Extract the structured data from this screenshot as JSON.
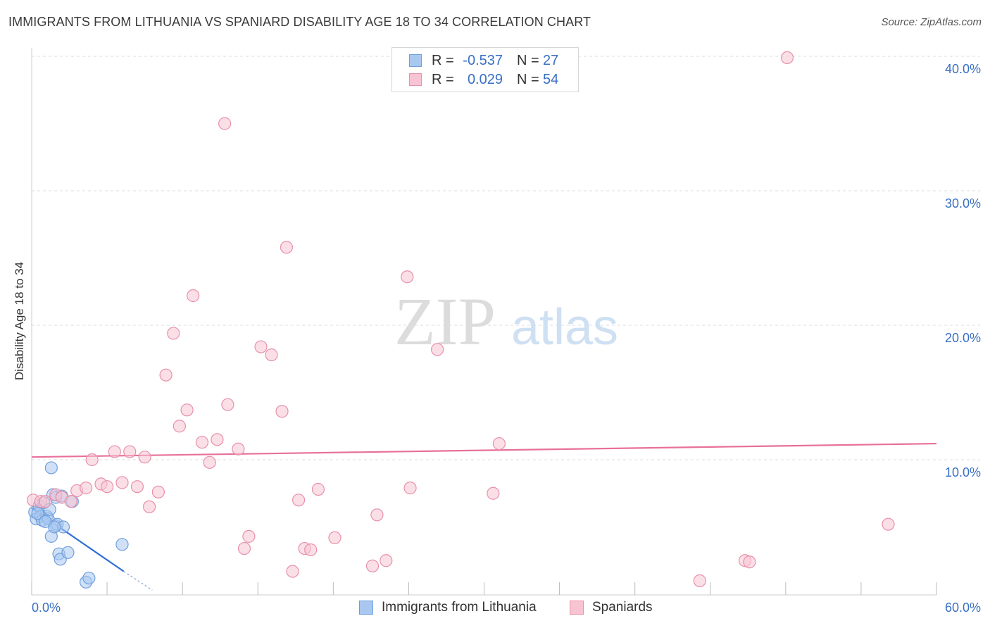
{
  "title": "IMMIGRANTS FROM LITHUANIA VS SPANIARD DISABILITY AGE 18 TO 34 CORRELATION CHART",
  "source": "Source: ZipAtlas.com",
  "watermark": {
    "zip": "ZIP",
    "atlas": "atlas"
  },
  "legend": {
    "rows": [
      {
        "r_label": "R =",
        "r_value": "-0.537",
        "n_label": "N =",
        "n_value": "27",
        "color": "#a9c8f0",
        "border": "#6f9fdc"
      },
      {
        "r_label": "R =",
        "r_value": "0.029",
        "n_label": "N =",
        "n_value": "54",
        "color": "#f8c4d3",
        "border": "#e890aa"
      }
    ]
  },
  "bottom_legend": [
    {
      "label": "Immigrants from Lithuania",
      "color": "#a9c8f0",
      "border": "#6f9fdc"
    },
    {
      "label": "Spaniards",
      "color": "#f8c4d3",
      "border": "#e890aa"
    }
  ],
  "chart_data": {
    "type": "scatter",
    "title": "IMMIGRANTS FROM LITHUANIA VS SPANIARD DISABILITY AGE 18 TO 34 CORRELATION CHART",
    "xlabel": "",
    "ylabel": "Disability Age 18 to 34",
    "xlim": [
      0,
      60
    ],
    "ylim": [
      0,
      41
    ],
    "x_tick_labels": [
      "0.0%",
      "60.0%"
    ],
    "y_ticks": [
      10,
      20,
      30,
      40
    ],
    "y_tick_labels": [
      "10.0%",
      "20.0%",
      "30.0%",
      "40.0%"
    ],
    "series": [
      {
        "name": "Immigrants from Lithuania",
        "color": "#a9c8f0",
        "stroke": "#6f9fdc",
        "points": [
          [
            0.2,
            6.1
          ],
          [
            0.3,
            5.6
          ],
          [
            0.5,
            6.6
          ],
          [
            0.6,
            5.8
          ],
          [
            0.7,
            5.5
          ],
          [
            0.8,
            6.8
          ],
          [
            1.0,
            5.8
          ],
          [
            1.1,
            5.6
          ],
          [
            1.2,
            6.3
          ],
          [
            1.3,
            4.3
          ],
          [
            1.3,
            9.4
          ],
          [
            1.4,
            7.4
          ],
          [
            1.6,
            5.1
          ],
          [
            1.6,
            7.2
          ],
          [
            1.7,
            5.2
          ],
          [
            1.8,
            3.0
          ],
          [
            1.9,
            2.6
          ],
          [
            2.0,
            7.3
          ],
          [
            2.1,
            5.0
          ],
          [
            2.4,
            3.1
          ],
          [
            2.7,
            6.9
          ],
          [
            3.6,
            0.9
          ],
          [
            3.8,
            1.2
          ],
          [
            6.0,
            3.7
          ],
          [
            0.4,
            6.0
          ],
          [
            0.9,
            5.4
          ],
          [
            1.5,
            5.0
          ]
        ],
        "trend": {
          "x": [
            0,
            6.1
          ],
          "y": [
            6.4,
            1.7
          ],
          "dash_x": [
            6.1,
            8.0
          ],
          "dash_y": [
            1.7,
            0.3
          ]
        }
      },
      {
        "name": "Spaniards",
        "color": "#f8c4d3",
        "stroke": "#e890aa",
        "points": [
          [
            0.1,
            7.0
          ],
          [
            0.6,
            6.9
          ],
          [
            0.9,
            6.9
          ],
          [
            1.6,
            7.4
          ],
          [
            2.0,
            7.2
          ],
          [
            2.6,
            6.9
          ],
          [
            3.0,
            7.7
          ],
          [
            3.6,
            7.9
          ],
          [
            4.0,
            10.0
          ],
          [
            4.6,
            8.2
          ],
          [
            5.0,
            8.0
          ],
          [
            5.5,
            10.6
          ],
          [
            6.0,
            8.3
          ],
          [
            6.5,
            10.6
          ],
          [
            7.0,
            8.0
          ],
          [
            7.5,
            10.2
          ],
          [
            7.8,
            6.5
          ],
          [
            8.4,
            7.6
          ],
          [
            8.9,
            16.3
          ],
          [
            9.4,
            19.4
          ],
          [
            9.8,
            12.5
          ],
          [
            10.3,
            13.7
          ],
          [
            10.7,
            22.2
          ],
          [
            11.3,
            11.3
          ],
          [
            11.8,
            9.8
          ],
          [
            12.3,
            11.5
          ],
          [
            12.8,
            35.0
          ],
          [
            13.0,
            14.1
          ],
          [
            13.7,
            10.8
          ],
          [
            14.1,
            3.4
          ],
          [
            14.4,
            4.3
          ],
          [
            15.2,
            18.4
          ],
          [
            15.9,
            17.8
          ],
          [
            16.6,
            13.6
          ],
          [
            16.9,
            25.8
          ],
          [
            17.3,
            1.7
          ],
          [
            17.7,
            7.0
          ],
          [
            18.1,
            3.4
          ],
          [
            18.5,
            3.3
          ],
          [
            19.0,
            7.8
          ],
          [
            20.1,
            4.2
          ],
          [
            22.6,
            2.1
          ],
          [
            22.9,
            5.9
          ],
          [
            23.5,
            2.5
          ],
          [
            24.9,
            23.6
          ],
          [
            25.1,
            7.9
          ],
          [
            26.9,
            18.2
          ],
          [
            30.6,
            7.5
          ],
          [
            31.0,
            11.2
          ],
          [
            44.3,
            1.0
          ],
          [
            47.3,
            2.5
          ],
          [
            47.6,
            2.4
          ],
          [
            50.1,
            39.9
          ],
          [
            56.8,
            5.2
          ]
        ],
        "trend": {
          "x": [
            0,
            60
          ],
          "y": [
            10.2,
            11.2
          ]
        }
      }
    ]
  }
}
